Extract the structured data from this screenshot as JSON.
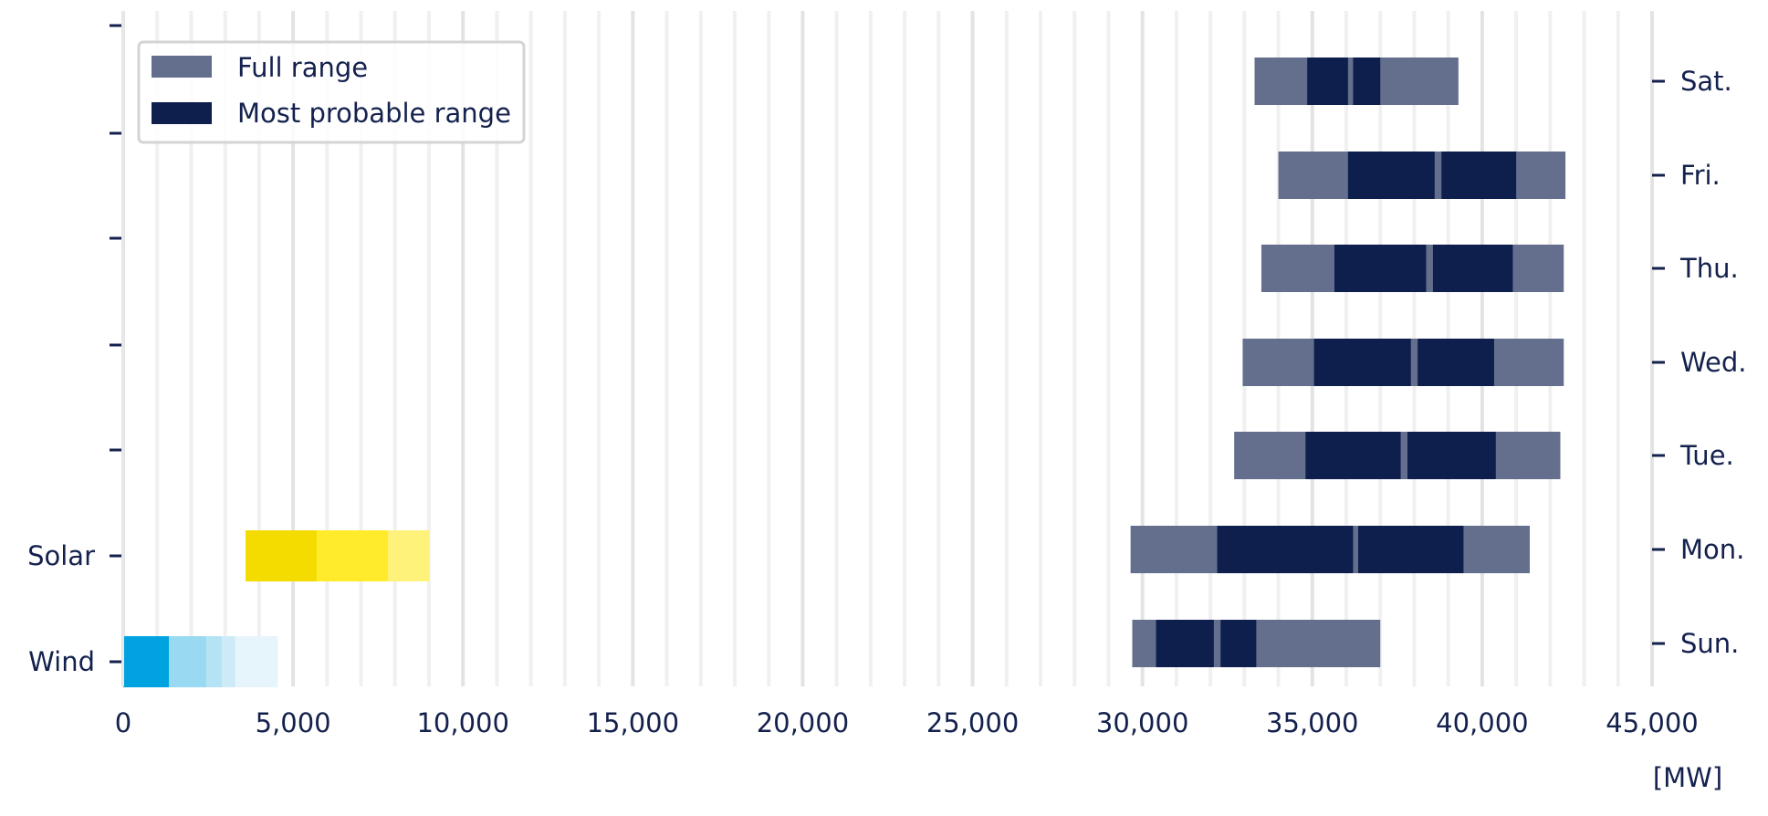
{
  "chart_data": {
    "type": "bar",
    "orientation": "horizontal-range",
    "xlim": [
      0,
      45000
    ],
    "x_ticks": [
      0,
      5000,
      10000,
      15000,
      20000,
      25000,
      30000,
      35000,
      40000,
      45000
    ],
    "x_tick_labels": [
      "0",
      "5,000",
      "10,000",
      "15,000",
      "20,000",
      "25,000",
      "30,000",
      "35,000",
      "40,000",
      "45,000"
    ],
    "unit_label": "[MW]",
    "grid": "vertical",
    "legend": {
      "placement": "top-left",
      "entries": [
        {
          "label": "Full range",
          "color": "#636f8c"
        },
        {
          "label": "Most probable range",
          "color": "#0f1f4d"
        }
      ]
    },
    "left_category_labels": [
      "Wind",
      "Solar"
    ],
    "right_category_labels": [
      "Sun.",
      "Mon.",
      "Tue.",
      "Wed.",
      "Thu.",
      "Fri.",
      "Sat."
    ],
    "renewables": [
      {
        "name": "Wind",
        "segments": [
          {
            "start": 0,
            "end": 1350,
            "color": "#00a3e0"
          },
          {
            "start": 1350,
            "end": 2450,
            "color": "#99d9f1"
          },
          {
            "start": 2450,
            "end": 2900,
            "color": "#b3e3f5"
          },
          {
            "start": 2900,
            "end": 3300,
            "color": "#cdebf7"
          },
          {
            "start": 3300,
            "end": 4550,
            "color": "#e6f5fc"
          }
        ]
      },
      {
        "name": "Solar",
        "segments": [
          {
            "start": 3600,
            "end": 5700,
            "color": "#f5dc00"
          },
          {
            "start": 5700,
            "end": 7800,
            "color": "#ffeb2b"
          },
          {
            "start": 7800,
            "end": 9000,
            "color": "#fff27a"
          }
        ]
      }
    ],
    "series": [
      {
        "day": "Sun.",
        "full_range": [
          29700,
          37000
        ],
        "most_probable": [
          [
            30400,
            32100
          ],
          [
            32300,
            33350
          ]
        ]
      },
      {
        "day": "Mon.",
        "full_range": [
          29650,
          41400
        ],
        "most_probable": [
          [
            32200,
            36200
          ],
          [
            36350,
            39450
          ]
        ]
      },
      {
        "day": "Tue.",
        "full_range": [
          32700,
          42300
        ],
        "most_probable": [
          [
            34800,
            37600
          ],
          [
            37800,
            40400
          ]
        ]
      },
      {
        "day": "Wed.",
        "full_range": [
          32950,
          42400
        ],
        "most_probable": [
          [
            35050,
            37900
          ],
          [
            38100,
            40350
          ]
        ]
      },
      {
        "day": "Thu.",
        "full_range": [
          33500,
          42400
        ],
        "most_probable": [
          [
            35650,
            38350
          ],
          [
            38550,
            40900
          ]
        ]
      },
      {
        "day": "Fri.",
        "full_range": [
          34000,
          42450
        ],
        "most_probable": [
          [
            36050,
            38600
          ],
          [
            38800,
            41000
          ]
        ]
      },
      {
        "day": "Sat.",
        "full_range": [
          33300,
          39300
        ],
        "most_probable": [
          [
            34850,
            36050
          ],
          [
            36200,
            37000
          ]
        ]
      }
    ]
  }
}
